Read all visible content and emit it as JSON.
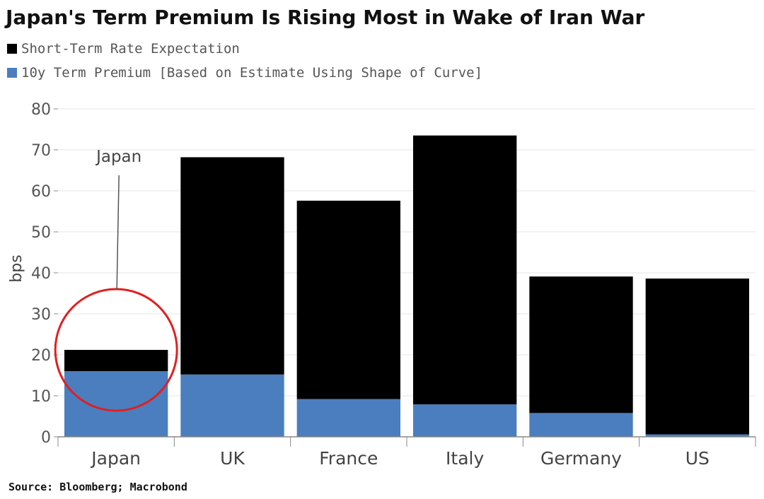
{
  "chart_data": {
    "type": "bar",
    "stacked": true,
    "title": "Japan's Term Premium Is Rising Most in Wake of Iran War",
    "xlabel": "",
    "ylabel": "bps",
    "ylim": [
      0,
      80
    ],
    "yticks": [
      0,
      10,
      20,
      30,
      40,
      50,
      60,
      70,
      80
    ],
    "categories": [
      "Japan",
      "UK",
      "France",
      "Italy",
      "Germany",
      "US"
    ],
    "series": [
      {
        "name": "10y Term Premium [Based on Estimate Using Shape of Curve]",
        "color": "#4a7ebf",
        "values": [
          16,
          15.2,
          9.2,
          7.9,
          5.8,
          0.6
        ]
      },
      {
        "name": "Short-Term Rate Expectation",
        "color": "#000000",
        "values": [
          5.2,
          53,
          48.4,
          65.6,
          33.3,
          38
        ]
      }
    ],
    "legend": [
      {
        "label": "Short-Term Rate Expectation",
        "color": "#000000"
      },
      {
        "label": "10y Term Premium [Based on Estimate Using Shape of Curve]",
        "color": "#4a7ebf"
      }
    ],
    "annotation": {
      "text": "Japan",
      "target": "Japan",
      "highlight_color": "#e02020"
    },
    "source": "Source: Bloomberg; Macrobond"
  }
}
